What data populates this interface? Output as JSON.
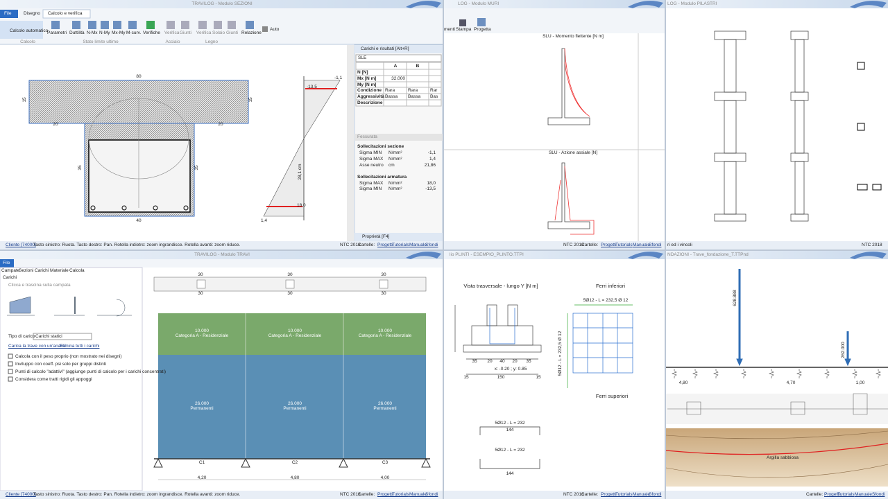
{
  "status": {
    "cliente": "Cliente [74000]",
    "hint": "Tasto sinistro: Ruota. Tasto destro: Pan. Rotella indietro: zoom ingrandisce. Rotella avanti: zoom riduce.",
    "norm": "NTC 2018",
    "folders": "Cartelle:",
    "links": [
      "Progetti",
      "Tutorials",
      "Manuale",
      "Sfondi"
    ]
  },
  "sezioni": {
    "title": "TRAVILOG - Modulo SEZIONI",
    "tabs": [
      "File",
      "Disegno",
      "Calcolo e verifica"
    ],
    "buttons": [
      "Calcolo automatico",
      "Parametri",
      "Duttilità",
      "N-Mx",
      "N-My",
      "Mx-My",
      "M-curv.",
      "Verifiche",
      "Verifica",
      "Giunti",
      "Verifica",
      "Solaio",
      "Giunti",
      "Relazione",
      "Auto"
    ],
    "groups": [
      "Calcolo",
      "Stato limite ultimo",
      "Acciaio",
      "Legno"
    ],
    "dims": [
      "80",
      "15",
      "15",
      "20",
      "20",
      "35",
      "35",
      "40",
      "-1,1",
      "-13,5",
      "18,0",
      "1,4",
      "28,1 cm"
    ],
    "panel": {
      "title": "Carichi e risultati [Alt+R]",
      "combo": "SLE",
      "columns": [
        "A",
        "B"
      ],
      "rows": [
        "N [N]",
        "Mx [N m]",
        "My [N m]",
        "Condizione",
        "Aggressività",
        "Descrizione"
      ],
      "mx": "32.000",
      "condizione": [
        "Rara",
        "Rara",
        "Rar"
      ],
      "aggressivita": [
        "Bassa",
        "Bassa",
        "Bas"
      ],
      "fessurata": "Fessurata",
      "sezione": {
        "title": "Sollecitazioni sezione",
        "rows": [
          [
            "Sigma MIN",
            "N/mm²",
            "-1,1"
          ],
          [
            "Sigma MAX",
            "N/mm²",
            "1,4"
          ],
          [
            "Asse neutro",
            "cm",
            "21,86"
          ]
        ]
      },
      "armatura": {
        "title": "Sollecitazioni armatura",
        "rows": [
          [
            "Sigma MAX",
            "N/mm²",
            "18,0"
          ],
          [
            "Sigma MIN",
            "N/mm²",
            "-13,5"
          ]
        ]
      },
      "proprieta": "Proprietà [F4]"
    }
  },
  "muri": {
    "title": "LOG - Modulo MURI",
    "buttons": [
      "menti",
      "Stampa",
      "Progetta"
    ],
    "plots": [
      "SLU - Momento flettente [N m]",
      "SLU - Azione assiale [N]"
    ]
  },
  "pilastri": {
    "title": "LOG - Modulo PILASTRI",
    "status": "ri ed i vincoli"
  },
  "travi": {
    "title": "TRAVILOG - Modulo TRAVI",
    "file": "File",
    "tabs": [
      "Campate",
      "Sezioni",
      "Carichi",
      "Materiale",
      "Calcola"
    ],
    "section": "Carichi",
    "hint": "Clicca e trascina sulla campata",
    "load_type_label": "Tipo di carico",
    "load_type": "Carichi statici",
    "links": [
      "Carica la trave con un'analisi",
      "Elimina tutti i carichi"
    ],
    "checks": [
      "Calcola con il peso proprio (non mostrato nei disegni)",
      "Inviluppo con coeff. psi solo per gruppi distinti",
      "Punti di calcolo \"adattivi\" (aggiunge punti di calcolo per i carichi concentrati)",
      "Considera come tratti rigidi gli appoggi"
    ],
    "section_dim": "30",
    "variable": {
      "value": "10.000",
      "name": "Categoria A - Residenziale"
    },
    "permanent": {
      "value": "26.000",
      "name": "Permanenti"
    },
    "spans": [
      "C1",
      "C2",
      "C3"
    ],
    "lengths": [
      "4,20",
      "4,80",
      "4,00"
    ]
  },
  "plinti": {
    "title": "lio PLINTI - ESEMPIO_PLINTO.TTPI",
    "views": [
      "Vista trasversale - lungo Y [N m]",
      "Ferri inferiori",
      "Ferri superiori"
    ],
    "coords": "x: -0.20 ; y: 0.85",
    "dims": [
      "35",
      "20",
      "40",
      "20",
      "35",
      "150",
      "15",
      "15"
    ],
    "bars": [
      "5Ø12 - L = 232,5 Ø 12",
      "5Ø12 - L = 232",
      "144"
    ]
  },
  "fondazioni": {
    "title": "NDAZIONI - Trave_fondazione_T.TTPnd",
    "loads": [
      "628.888",
      "262.000"
    ],
    "lengths": [
      "4,80",
      "4,70",
      "1,00"
    ],
    "soil": "Argilla sabbiosa"
  }
}
